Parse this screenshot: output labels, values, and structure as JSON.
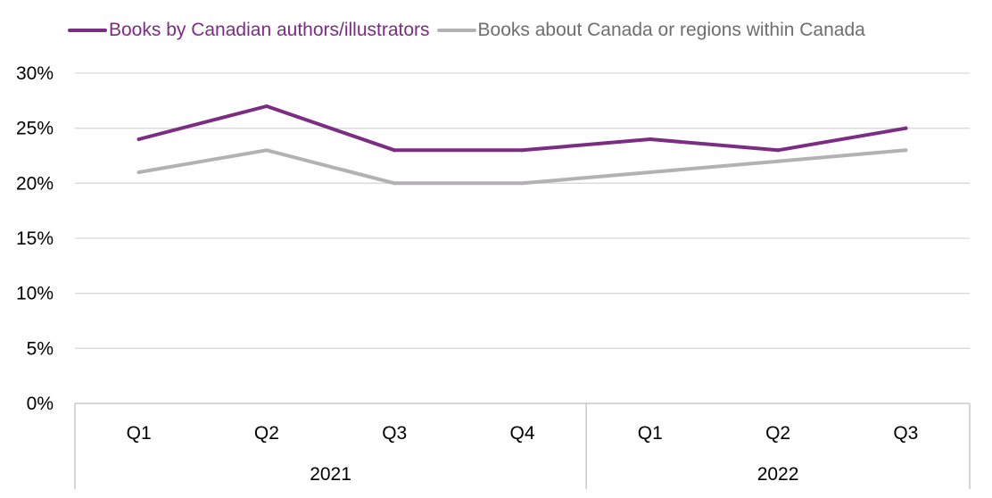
{
  "chart_data": {
    "type": "line",
    "categories": [
      "Q1",
      "Q2",
      "Q3",
      "Q4",
      "Q1",
      "Q2",
      "Q3"
    ],
    "groups": [
      {
        "label": "2021",
        "count": 4
      },
      {
        "label": "2022",
        "count": 3
      }
    ],
    "series": [
      {
        "name": "Books by Canadian authors/illustrators",
        "color": "#7B2C83",
        "values": [
          24,
          27,
          23,
          23,
          24,
          23,
          25
        ]
      },
      {
        "name": "Books about Canada or regions within Canada",
        "color": "#B3B1B3",
        "values": [
          21,
          23,
          20,
          20,
          21,
          22,
          23
        ]
      }
    ],
    "ylim": [
      0,
      30
    ],
    "yticks": [
      0,
      5,
      10,
      15,
      20,
      25,
      30
    ],
    "ytick_labels": [
      "0%",
      "5%",
      "10%",
      "15%",
      "20%",
      "25%",
      "30%"
    ],
    "grid": true,
    "legend_position": "top-left",
    "title": "",
    "xlabel": "",
    "ylabel": ""
  }
}
